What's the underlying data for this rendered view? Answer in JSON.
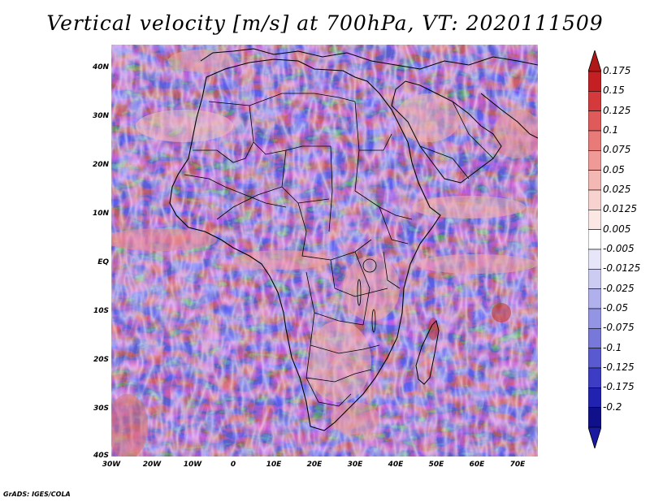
{
  "title": "Vertical velocity [m/s] at 700hPa, VT: 2020111509",
  "credit": "GrADS: IGES/COLA",
  "lat_labels": [
    "40N",
    "30N",
    "20N",
    "10N",
    "EQ",
    "10S",
    "20S",
    "30S",
    "40S"
  ],
  "lon_labels": [
    "30W",
    "20W",
    "10W",
    "0",
    "10E",
    "20E",
    "30E",
    "40E",
    "50E",
    "60E",
    "70E"
  ],
  "colorbar": {
    "labels": [
      "0.175",
      "0.15",
      "0.125",
      "0.1",
      "0.075",
      "0.05",
      "0.025",
      "0.0125",
      "0.005",
      "-0.005",
      "-0.0125",
      "-0.025",
      "-0.05",
      "-0.075",
      "-0.1",
      "-0.125",
      "-0.175",
      "-0.2"
    ],
    "colors": [
      "#c42024",
      "#d43a3c",
      "#e05a5a",
      "#e87a78",
      "#ef9a96",
      "#f4b8b4",
      "#f8d2ce",
      "#fbe7e4",
      "#ffffff",
      "#e6e6f8",
      "#ccccf2",
      "#b0b0ec",
      "#9494e4",
      "#7878da",
      "#5a5ad0",
      "#3c3cc4",
      "#2222b0",
      "#10108a"
    ],
    "top_tip_color": "#b01818",
    "bottom_tip_color": "#1a1aa0"
  },
  "map": {
    "extent": {
      "lon_min": -30,
      "lon_max": 75,
      "lat_min": -40,
      "lat_max": 45
    },
    "ocean_color": "#d8d8f4",
    "land_color": "#e4e0f0"
  }
}
